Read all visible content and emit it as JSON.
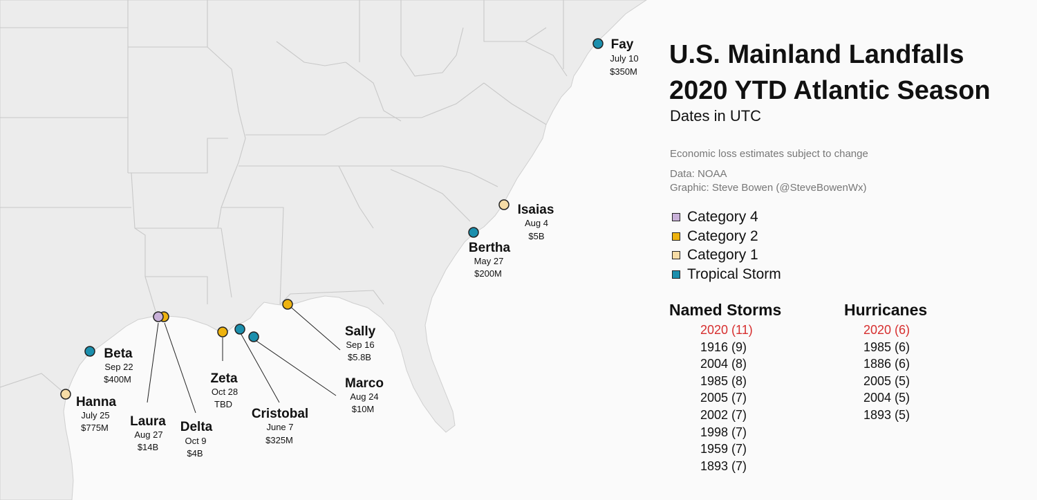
{
  "title_line1": "U.S. Mainland Landfalls",
  "title_line2": "2020 YTD Atlantic Season",
  "subtitle": "Dates in UTC",
  "note_loss": "Economic loss estimates subject to change",
  "note_data": "Data: NOAA",
  "note_graphic": "Graphic: Steve Bowen (@SteveBowenWx)",
  "colors": {
    "cat4": "#c8b0d8",
    "cat2": "#eeb30f",
    "cat1": "#f6dca6",
    "ts": "#1b8fad",
    "highlight": "#d62e2e",
    "land": "#ececec",
    "water": "#fafafa",
    "border": "#c4c4c4"
  },
  "legend": [
    {
      "key": "cat4",
      "label": "Category 4"
    },
    {
      "key": "cat2",
      "label": "Category 2"
    },
    {
      "key": "cat1",
      "label": "Category 1"
    },
    {
      "key": "ts",
      "label": "Tropical Storm"
    }
  ],
  "named_storms": {
    "header": "Named Storms",
    "items": [
      "2020 (11)",
      "1916 (9)",
      "2004 (8)",
      "1985 (8)",
      "2005 (7)",
      "2002 (7)",
      "1998 (7)",
      "1959 (7)",
      "1893 (7)"
    ]
  },
  "hurricanes": {
    "header": "Hurricanes",
    "items": [
      "2020 (6)",
      "1985 (6)",
      "1886 (6)",
      "2005 (5)",
      "2004 (5)",
      "1893 (5)"
    ]
  },
  "storms": [
    {
      "id": "fay",
      "name": "Fay",
      "date": "July 10",
      "loss": "$350M",
      "category": "ts"
    },
    {
      "id": "isaias",
      "name": "Isaias",
      "date": "Aug 4",
      "loss": "$5B",
      "category": "cat1"
    },
    {
      "id": "bertha",
      "name": "Bertha",
      "date": "May 27",
      "loss": "$200M",
      "category": "ts"
    },
    {
      "id": "sally",
      "name": "Sally",
      "date": "Sep 16",
      "loss": "$5.8B",
      "category": "cat2"
    },
    {
      "id": "marco",
      "name": "Marco",
      "date": "Aug 24",
      "loss": "$10M",
      "category": "ts"
    },
    {
      "id": "cristobal",
      "name": "Cristobal",
      "date": "June 7",
      "loss": "$325M",
      "category": "ts"
    },
    {
      "id": "zeta",
      "name": "Zeta",
      "date": "Oct 28",
      "loss": "TBD",
      "category": "cat2"
    },
    {
      "id": "delta",
      "name": "Delta",
      "date": "Oct 9",
      "loss": "$4B",
      "category": "cat2"
    },
    {
      "id": "laura",
      "name": "Laura",
      "date": "Aug 27",
      "loss": "$14B",
      "category": "cat4"
    },
    {
      "id": "beta",
      "name": "Beta",
      "date": "Sep 22",
      "loss": "$400M",
      "category": "ts"
    },
    {
      "id": "hanna",
      "name": "Hanna",
      "date": "July 25",
      "loss": "$775M",
      "category": "cat1"
    }
  ]
}
